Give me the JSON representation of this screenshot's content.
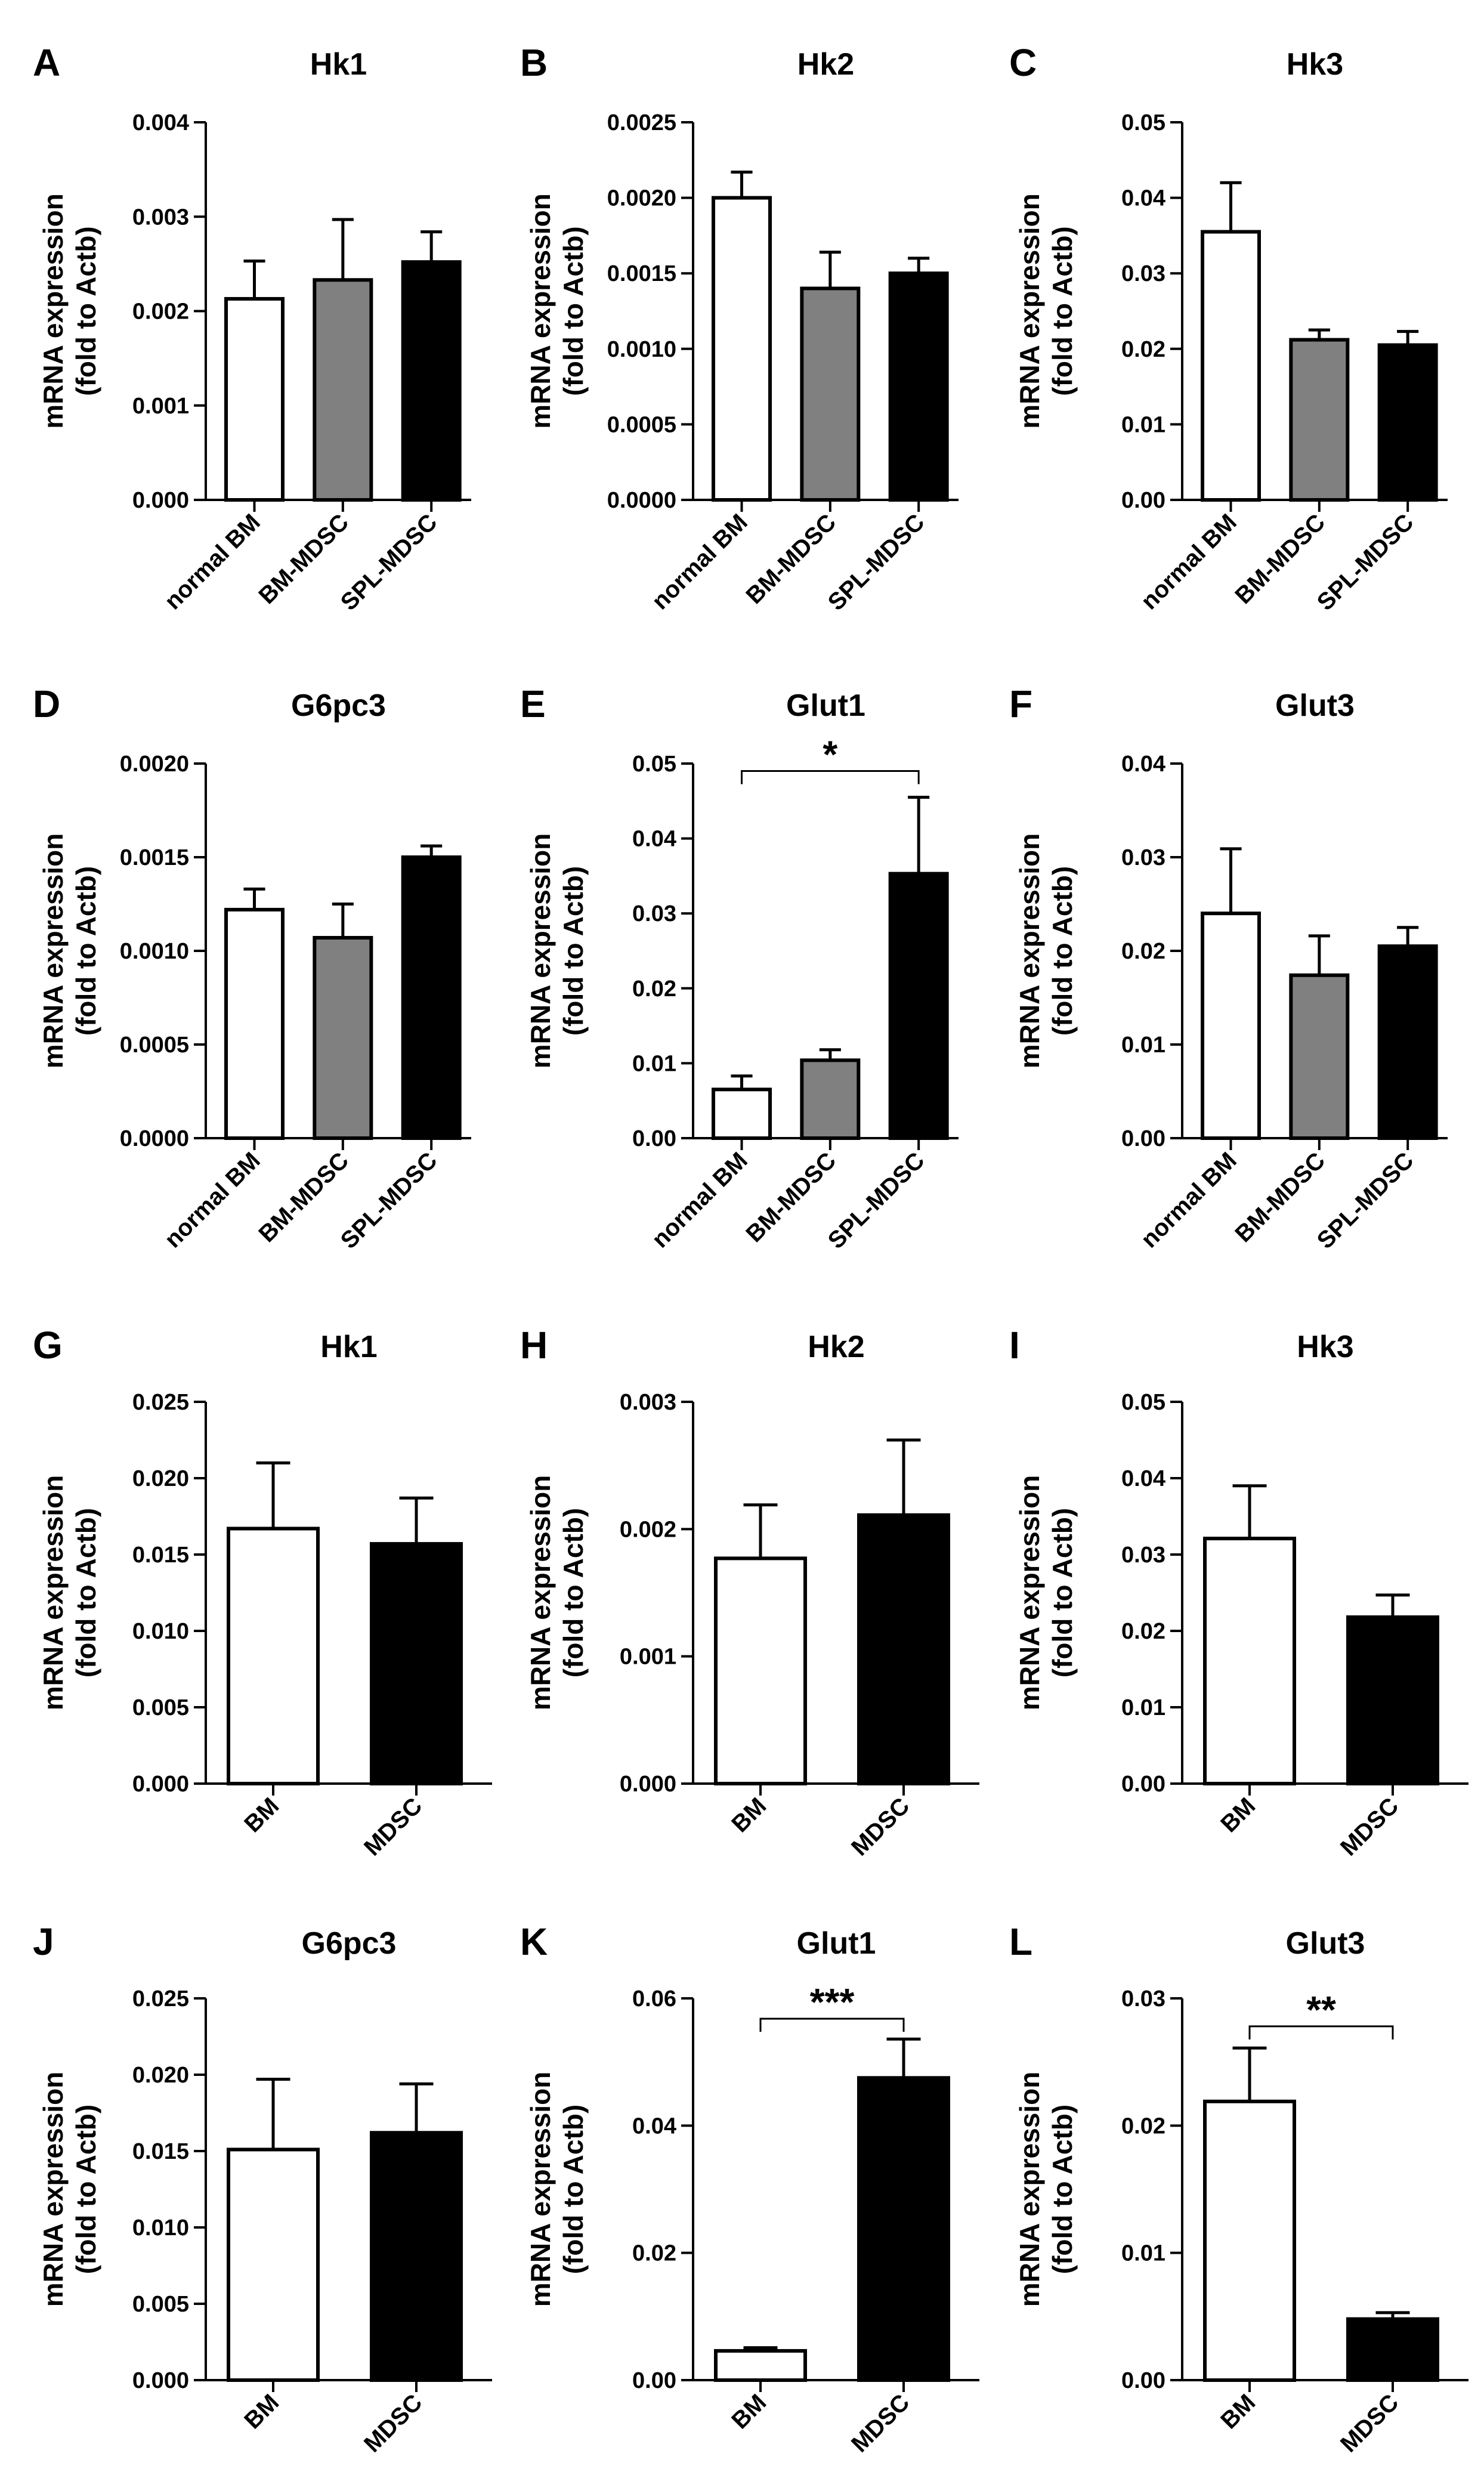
{
  "chart_data": [
    {
      "panel": "A",
      "type": "bar",
      "title": "Hk1",
      "ylabel": [
        "mRNA expression",
        "(fold to Actb)"
      ],
      "categories": [
        "normal BM",
        "BM-MDSC",
        "SPL-MDSC"
      ],
      "values": [
        0.00213,
        0.00233,
        0.00252
      ],
      "errors": [
        0.0004,
        0.00064,
        0.00032
      ],
      "bar_colors": [
        "#ffffff",
        "#808080",
        "#000000"
      ],
      "ylim": [
        0,
        0.004
      ],
      "yticks": [
        0,
        0.001,
        0.002,
        0.003,
        0.004
      ],
      "ytick_labels": [
        "0.000",
        "0.001",
        "0.002",
        "0.003",
        "0.004"
      ]
    },
    {
      "panel": "B",
      "type": "bar",
      "title": "Hk2",
      "ylabel": [
        "mRNA expression",
        "(fold to Actb)"
      ],
      "categories": [
        "normal BM",
        "BM-MDSC",
        "SPL-MDSC"
      ],
      "values": [
        0.002,
        0.0014,
        0.0015
      ],
      "errors": [
        0.00017,
        0.00024,
        0.0001
      ],
      "bar_colors": [
        "#ffffff",
        "#808080",
        "#000000"
      ],
      "ylim": [
        0,
        0.0025
      ],
      "yticks": [
        0,
        0.0005,
        0.001,
        0.0015,
        0.002,
        0.0025
      ],
      "ytick_labels": [
        "0.0000",
        "0.0005",
        "0.0010",
        "0.0015",
        "0.0020",
        "0.0025"
      ]
    },
    {
      "panel": "C",
      "type": "bar",
      "title": "Hk3",
      "ylabel": [
        "mRNA expression",
        "(fold to Actb)"
      ],
      "categories": [
        "normal BM",
        "BM-MDSC",
        "SPL-MDSC"
      ],
      "values": [
        0.0355,
        0.0212,
        0.0205
      ],
      "errors": [
        0.0065,
        0.0013,
        0.0018
      ],
      "bar_colors": [
        "#ffffff",
        "#808080",
        "#000000"
      ],
      "ylim": [
        0,
        0.05
      ],
      "yticks": [
        0,
        0.01,
        0.02,
        0.03,
        0.04,
        0.05
      ],
      "ytick_labels": [
        "0.00",
        "0.01",
        "0.02",
        "0.03",
        "0.04",
        "0.05"
      ]
    },
    {
      "panel": "D",
      "type": "bar",
      "title": "G6pc3",
      "ylabel": [
        "mRNA expression",
        "(fold to Actb)"
      ],
      "categories": [
        "normal BM",
        "BM-MDSC",
        "SPL-MDSC"
      ],
      "values": [
        0.00122,
        0.00107,
        0.0015
      ],
      "errors": [
        0.00011,
        0.00018,
        6e-05
      ],
      "bar_colors": [
        "#ffffff",
        "#808080",
        "#000000"
      ],
      "ylim": [
        0,
        0.002
      ],
      "yticks": [
        0,
        0.0005,
        0.001,
        0.0015,
        0.002
      ],
      "ytick_labels": [
        "0.0000",
        "0.0005",
        "0.0010",
        "0.0015",
        "0.0020"
      ]
    },
    {
      "panel": "E",
      "type": "bar",
      "title": "Glut1",
      "ylabel": [
        "mRNA expression",
        "(fold to Actb)"
      ],
      "categories": [
        "normal BM",
        "BM-MDSC",
        "SPL-MDSC"
      ],
      "values": [
        0.0065,
        0.0104,
        0.0353
      ],
      "errors": [
        0.0018,
        0.0014,
        0.0102
      ],
      "bar_colors": [
        "#ffffff",
        "#808080",
        "#000000"
      ],
      "ylim": [
        0,
        0.05
      ],
      "yticks": [
        0,
        0.01,
        0.02,
        0.03,
        0.04,
        0.05
      ],
      "ytick_labels": [
        "0.00",
        "0.01",
        "0.02",
        "0.03",
        "0.04",
        "0.05"
      ],
      "annotation": {
        "text": "*",
        "from": 0,
        "to": 2,
        "y": 0.049
      }
    },
    {
      "panel": "F",
      "type": "bar",
      "title": "Glut3",
      "ylabel": [
        "mRNA expression",
        "(fold to Actb)"
      ],
      "categories": [
        "normal BM",
        "BM-MDSC",
        "SPL-MDSC"
      ],
      "values": [
        0.024,
        0.0174,
        0.0205
      ],
      "errors": [
        0.0069,
        0.0042,
        0.002
      ],
      "bar_colors": [
        "#ffffff",
        "#808080",
        "#000000"
      ],
      "ylim": [
        0,
        0.04
      ],
      "yticks": [
        0,
        0.01,
        0.02,
        0.03,
        0.04
      ],
      "ytick_labels": [
        "0.00",
        "0.01",
        "0.02",
        "0.03",
        "0.04"
      ]
    },
    {
      "panel": "G",
      "type": "bar",
      "title": "Hk1",
      "ylabel": [
        "mRNA expression",
        "(fold to Actb)"
      ],
      "categories": [
        "BM",
        "MDSC"
      ],
      "values": [
        0.0167,
        0.0157
      ],
      "errors": [
        0.0043,
        0.003
      ],
      "bar_colors": [
        "#ffffff",
        "#000000"
      ],
      "ylim": [
        0,
        0.025
      ],
      "yticks": [
        0,
        0.005,
        0.01,
        0.015,
        0.02,
        0.025
      ],
      "ytick_labels": [
        "0.000",
        "0.005",
        "0.010",
        "0.015",
        "0.020",
        "0.025"
      ]
    },
    {
      "panel": "H",
      "type": "bar",
      "title": "Hk2",
      "ylabel": [
        "mRNA expression",
        "(fold to Actb)"
      ],
      "categories": [
        "BM",
        "MDSC"
      ],
      "values": [
        0.00177,
        0.00211
      ],
      "errors": [
        0.00042,
        0.00059
      ],
      "bar_colors": [
        "#ffffff",
        "#000000"
      ],
      "ylim": [
        0,
        0.003
      ],
      "yticks": [
        0,
        0.001,
        0.002,
        0.003
      ],
      "ytick_labels": [
        "0.000",
        "0.001",
        "0.002",
        "0.003"
      ]
    },
    {
      "panel": "I",
      "type": "bar",
      "title": "Hk3",
      "ylabel": [
        "mRNA expression",
        "(fold to Actb)"
      ],
      "categories": [
        "BM",
        "MDSC"
      ],
      "values": [
        0.0321,
        0.0218
      ],
      "errors": [
        0.0069,
        0.0029
      ],
      "bar_colors": [
        "#ffffff",
        "#000000"
      ],
      "ylim": [
        0,
        0.05
      ],
      "yticks": [
        0,
        0.01,
        0.02,
        0.03,
        0.04,
        0.05
      ],
      "ytick_labels": [
        "0.00",
        "0.01",
        "0.02",
        "0.03",
        "0.04",
        "0.05"
      ]
    },
    {
      "panel": "J",
      "type": "bar",
      "title": "G6pc3",
      "ylabel": [
        "mRNA expression",
        "(fold to Actb)"
      ],
      "categories": [
        "BM",
        "MDSC"
      ],
      "values": [
        0.0151,
        0.0162
      ],
      "errors": [
        0.0046,
        0.0032
      ],
      "bar_colors": [
        "#ffffff",
        "#000000"
      ],
      "ylim": [
        0,
        0.025
      ],
      "yticks": [
        0,
        0.005,
        0.01,
        0.015,
        0.02,
        0.025
      ],
      "ytick_labels": [
        "0.000",
        "0.005",
        "0.010",
        "0.015",
        "0.020",
        "0.025"
      ]
    },
    {
      "panel": "K",
      "type": "bar",
      "title": "Glut1",
      "ylabel": [
        "mRNA expression",
        "(fold to Actb)"
      ],
      "categories": [
        "BM",
        "MDSC"
      ],
      "values": [
        0.0046,
        0.0475
      ],
      "errors": [
        0.0005,
        0.0061
      ],
      "bar_colors": [
        "#ffffff",
        "#000000"
      ],
      "ylim": [
        0,
        0.06
      ],
      "yticks": [
        0,
        0.02,
        0.04,
        0.06
      ],
      "ytick_labels": [
        "0.00",
        "0.02",
        "0.04",
        "0.06"
      ],
      "annotation": {
        "text": "***",
        "from": 0,
        "to": 1,
        "y": 0.0568
      }
    },
    {
      "panel": "L",
      "type": "bar",
      "title": "Glut3",
      "ylabel": [
        "mRNA expression",
        "(fold to Actb)"
      ],
      "categories": [
        "BM",
        "MDSC"
      ],
      "values": [
        0.0219,
        0.0048
      ],
      "errors": [
        0.0042,
        0.0005
      ],
      "bar_colors": [
        "#ffffff",
        "#000000"
      ],
      "ylim": [
        0,
        0.03
      ],
      "yticks": [
        0,
        0.01,
        0.02,
        0.03
      ],
      "ytick_labels": [
        "0.00",
        "0.01",
        "0.02",
        "0.03"
      ],
      "annotation": {
        "text": "**",
        "from": 0,
        "to": 1,
        "y": 0.0278
      }
    }
  ]
}
